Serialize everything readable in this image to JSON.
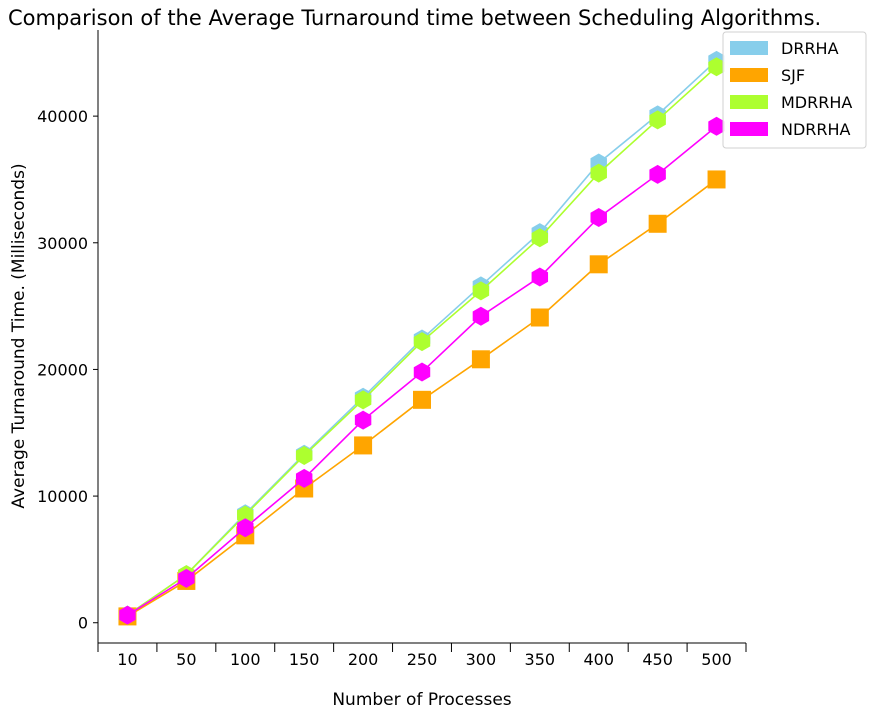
{
  "chart_data": {
    "type": "line",
    "title": "Comparison of the Average Turnaround time between Scheduling Algorithms.",
    "xlabel": "Number of Processes",
    "ylabel": "Average Turnaround Time. (Milliseconds)",
    "categories": [
      "10",
      "50",
      "100",
      "150",
      "200",
      "250",
      "300",
      "350",
      "400",
      "450",
      "500"
    ],
    "yticks": [
      0,
      10000,
      20000,
      30000,
      40000
    ],
    "ylim": [
      -1600,
      46800
    ],
    "grid": false,
    "legend_position": "top-right",
    "series": [
      {
        "name": "DRRHA",
        "color": "#87CEEB",
        "marker": "hexagon",
        "values": [
          600,
          3800,
          8600,
          13300,
          17800,
          22400,
          26600,
          30800,
          36300,
          40100,
          44400
        ]
      },
      {
        "name": "SJF",
        "color": "#FFA500",
        "marker": "square",
        "values": [
          500,
          3300,
          6900,
          10600,
          14000,
          17600,
          20800,
          24100,
          28300,
          31500,
          35000
        ]
      },
      {
        "name": "MDRRHA",
        "color": "#ADFF2F",
        "marker": "hexagon",
        "values": [
          600,
          3800,
          8500,
          13200,
          17600,
          22200,
          26200,
          30400,
          35500,
          39700,
          43900
        ]
      },
      {
        "name": "NDRRHA",
        "color": "#FF00FF",
        "marker": "hexagon",
        "values": [
          600,
          3500,
          7500,
          11400,
          16000,
          19800,
          24200,
          27300,
          32000,
          35400,
          39200
        ]
      }
    ]
  }
}
